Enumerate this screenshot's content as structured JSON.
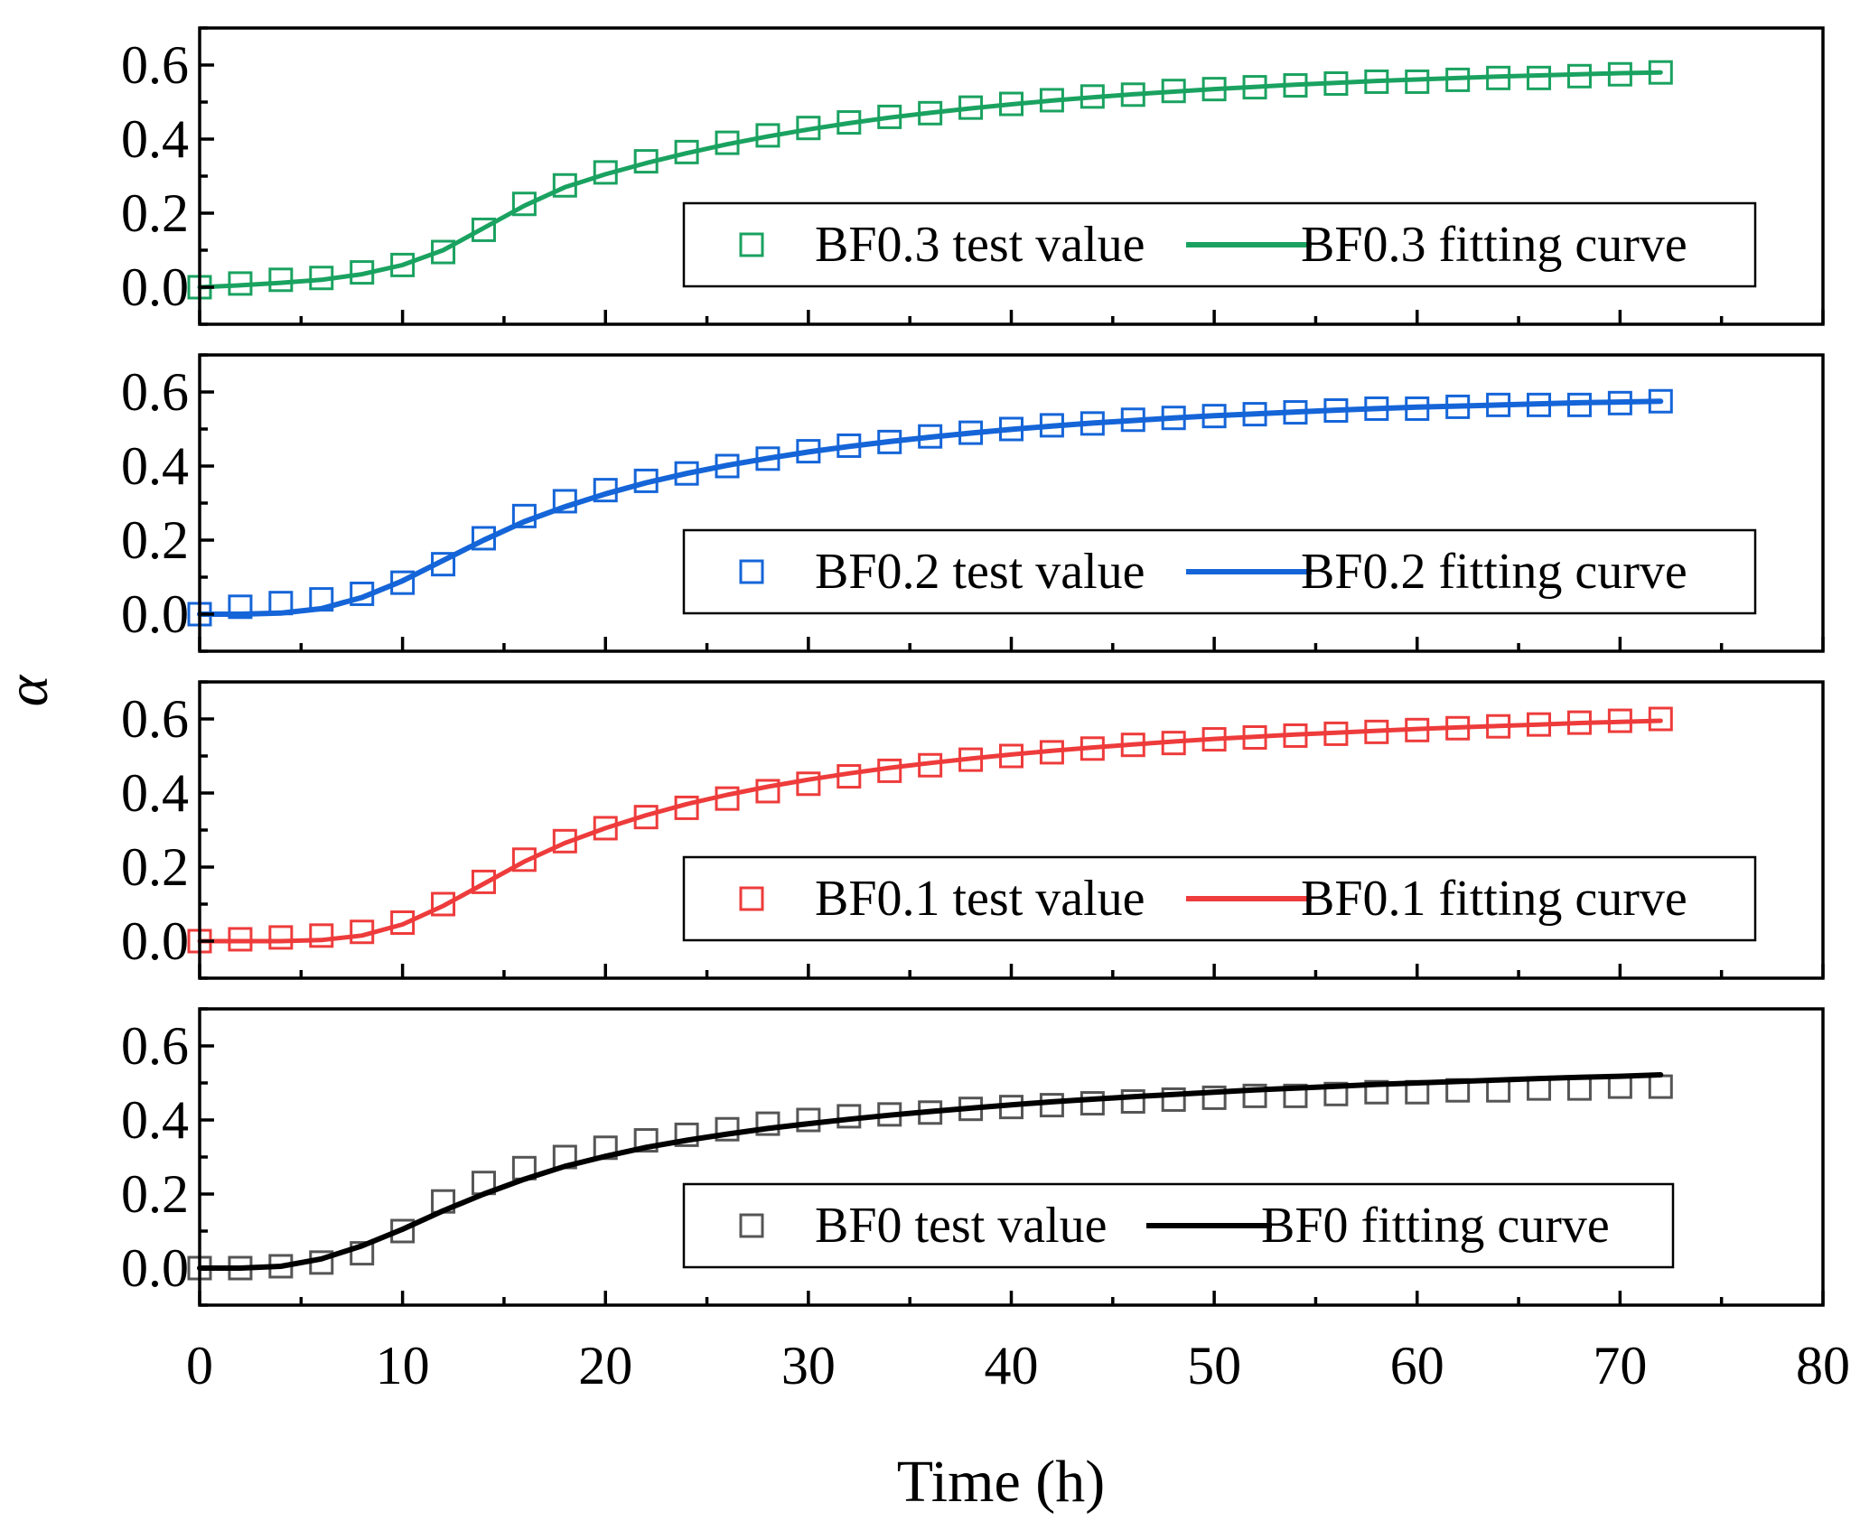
{
  "chart_data": {
    "type": "scatter",
    "x_label": "Time (h)",
    "y_label": "α",
    "xlim": [
      0,
      80
    ],
    "x_ticks": [
      0,
      10,
      20,
      30,
      40,
      50,
      60,
      70,
      80
    ],
    "x_tick_labels": [
      "0",
      "10",
      "20",
      "30",
      "40",
      "50",
      "60",
      "70",
      "80"
    ],
    "panels": [
      {
        "id": "bf03",
        "ylim": [
          -0.1,
          0.7
        ],
        "y_ticks": [
          0.0,
          0.2,
          0.4,
          0.6
        ],
        "y_tick_labels": [
          "0.0",
          "0.2",
          "0.4",
          "0.6"
        ],
        "color": "#1aa260",
        "test_label": "BF0.3 test value",
        "fit_label": "BF0.3 fitting curve",
        "test_x": [
          0,
          2,
          4,
          6,
          8,
          10,
          12,
          14,
          16,
          18,
          20,
          22,
          24,
          26,
          28,
          30,
          32,
          34,
          36,
          38,
          40,
          42,
          44,
          46,
          48,
          50,
          52,
          54,
          56,
          58,
          60,
          62,
          64,
          66,
          68,
          70,
          72
        ],
        "test_y": [
          0.0,
          0.01,
          0.02,
          0.025,
          0.04,
          0.06,
          0.095,
          0.155,
          0.225,
          0.275,
          0.31,
          0.34,
          0.365,
          0.39,
          0.41,
          0.43,
          0.445,
          0.46,
          0.47,
          0.485,
          0.495,
          0.505,
          0.515,
          0.52,
          0.53,
          0.535,
          0.54,
          0.545,
          0.55,
          0.555,
          0.555,
          0.56,
          0.565,
          0.565,
          0.57,
          0.575,
          0.58
        ],
        "fit_x": [
          0,
          2,
          4,
          6,
          8,
          10,
          12,
          14,
          16,
          18,
          20,
          22,
          24,
          26,
          28,
          30,
          32,
          34,
          36,
          38,
          40,
          42,
          44,
          46,
          48,
          50,
          52,
          54,
          56,
          58,
          60,
          62,
          64,
          66,
          68,
          70,
          72
        ],
        "fit_y": [
          0.0,
          0.005,
          0.012,
          0.02,
          0.035,
          0.06,
          0.1,
          0.16,
          0.22,
          0.27,
          0.305,
          0.335,
          0.362,
          0.386,
          0.407,
          0.426,
          0.443,
          0.458,
          0.471,
          0.483,
          0.494,
          0.504,
          0.513,
          0.521,
          0.528,
          0.535,
          0.541,
          0.547,
          0.552,
          0.557,
          0.561,
          0.565,
          0.569,
          0.572,
          0.575,
          0.578,
          0.58
        ]
      },
      {
        "id": "bf02",
        "ylim": [
          -0.1,
          0.7
        ],
        "y_ticks": [
          0.0,
          0.2,
          0.4,
          0.6
        ],
        "y_tick_labels": [
          "0.0",
          "0.2",
          "0.4",
          "0.6"
        ],
        "color": "#1565d8",
        "test_label": "BF0.2 test value",
        "fit_label": "BF0.2 fitting curve",
        "test_x": [
          0,
          2,
          4,
          6,
          8,
          10,
          12,
          14,
          16,
          18,
          20,
          22,
          24,
          26,
          28,
          30,
          32,
          34,
          36,
          38,
          40,
          42,
          44,
          46,
          48,
          50,
          52,
          54,
          56,
          58,
          60,
          62,
          64,
          66,
          68,
          70,
          72
        ],
        "test_y": [
          0.0,
          0.02,
          0.03,
          0.04,
          0.055,
          0.085,
          0.135,
          0.205,
          0.265,
          0.305,
          0.335,
          0.36,
          0.38,
          0.4,
          0.42,
          0.44,
          0.455,
          0.465,
          0.48,
          0.49,
          0.5,
          0.51,
          0.515,
          0.525,
          0.53,
          0.535,
          0.54,
          0.545,
          0.55,
          0.555,
          0.555,
          0.56,
          0.565,
          0.565,
          0.565,
          0.57,
          0.575
        ],
        "fit_x": [
          0,
          2,
          4,
          6,
          8,
          10,
          12,
          14,
          16,
          18,
          20,
          22,
          24,
          26,
          28,
          30,
          32,
          34,
          36,
          38,
          40,
          42,
          44,
          46,
          48,
          50,
          52,
          54,
          56,
          58,
          60,
          62,
          64,
          66,
          68,
          70,
          72
        ],
        "fit_y": [
          0.0,
          0.0,
          0.003,
          0.015,
          0.045,
          0.09,
          0.145,
          0.2,
          0.25,
          0.29,
          0.325,
          0.355,
          0.38,
          0.402,
          0.421,
          0.438,
          0.453,
          0.466,
          0.478,
          0.489,
          0.499,
          0.508,
          0.516,
          0.523,
          0.53,
          0.536,
          0.541,
          0.546,
          0.551,
          0.555,
          0.559,
          0.562,
          0.565,
          0.568,
          0.571,
          0.573,
          0.575
        ]
      },
      {
        "id": "bf01",
        "ylim": [
          -0.1,
          0.7
        ],
        "y_ticks": [
          0.0,
          0.2,
          0.4,
          0.6
        ],
        "y_tick_labels": [
          "0.0",
          "0.2",
          "0.4",
          "0.6"
        ],
        "color": "#ee3b3b",
        "test_label": "BF0.1 test value",
        "fit_label": "BF0.1 fitting curve",
        "test_x": [
          0,
          2,
          4,
          6,
          8,
          10,
          12,
          14,
          16,
          18,
          20,
          22,
          24,
          26,
          28,
          30,
          32,
          34,
          36,
          38,
          40,
          42,
          44,
          46,
          48,
          50,
          52,
          54,
          56,
          58,
          60,
          62,
          64,
          66,
          68,
          70,
          72
        ],
        "test_y": [
          0.0,
          0.005,
          0.01,
          0.015,
          0.025,
          0.05,
          0.1,
          0.16,
          0.22,
          0.27,
          0.305,
          0.335,
          0.36,
          0.385,
          0.405,
          0.425,
          0.445,
          0.46,
          0.475,
          0.49,
          0.5,
          0.51,
          0.52,
          0.53,
          0.535,
          0.545,
          0.55,
          0.555,
          0.56,
          0.565,
          0.57,
          0.575,
          0.58,
          0.585,
          0.59,
          0.595,
          0.6
        ],
        "fit_x": [
          0,
          2,
          4,
          6,
          8,
          10,
          12,
          14,
          16,
          18,
          20,
          22,
          24,
          26,
          28,
          30,
          32,
          34,
          36,
          38,
          40,
          42,
          44,
          46,
          48,
          50,
          52,
          54,
          56,
          58,
          60,
          62,
          64,
          66,
          68,
          70,
          72
        ],
        "fit_y": [
          0.0,
          0.0,
          0.0,
          0.003,
          0.015,
          0.045,
          0.095,
          0.155,
          0.215,
          0.265,
          0.305,
          0.34,
          0.37,
          0.395,
          0.417,
          0.436,
          0.453,
          0.468,
          0.481,
          0.493,
          0.504,
          0.514,
          0.523,
          0.531,
          0.539,
          0.546,
          0.552,
          0.558,
          0.563,
          0.568,
          0.573,
          0.577,
          0.581,
          0.585,
          0.589,
          0.592,
          0.595
        ]
      },
      {
        "id": "bf0",
        "ylim": [
          -0.1,
          0.7
        ],
        "y_ticks": [
          0.0,
          0.2,
          0.4,
          0.6
        ],
        "y_tick_labels": [
          "0.0",
          "0.2",
          "0.4",
          "0.6"
        ],
        "color": "#000000",
        "marker_color": "#555555",
        "test_label": "BF0 test value",
        "fit_label": "BF0 fitting curve",
        "test_x": [
          0,
          2,
          4,
          6,
          8,
          10,
          12,
          14,
          16,
          18,
          20,
          22,
          24,
          26,
          28,
          30,
          32,
          34,
          36,
          38,
          40,
          42,
          44,
          46,
          48,
          50,
          52,
          54,
          56,
          58,
          60,
          62,
          64,
          66,
          68,
          70,
          72
        ],
        "test_y": [
          0.0,
          0.0,
          0.005,
          0.015,
          0.04,
          0.1,
          0.18,
          0.23,
          0.27,
          0.3,
          0.325,
          0.345,
          0.36,
          0.375,
          0.39,
          0.4,
          0.41,
          0.415,
          0.42,
          0.43,
          0.435,
          0.44,
          0.445,
          0.45,
          0.455,
          0.46,
          0.465,
          0.465,
          0.47,
          0.475,
          0.475,
          0.48,
          0.48,
          0.485,
          0.485,
          0.49,
          0.49
        ],
        "fit_x": [
          0,
          2,
          4,
          6,
          8,
          10,
          12,
          14,
          16,
          18,
          20,
          22,
          24,
          26,
          28,
          30,
          32,
          34,
          36,
          38,
          40,
          42,
          44,
          46,
          48,
          50,
          52,
          54,
          56,
          58,
          60,
          62,
          64,
          66,
          68,
          70,
          72
        ],
        "fit_y": [
          0.0,
          0.0,
          0.005,
          0.025,
          0.06,
          0.105,
          0.155,
          0.2,
          0.24,
          0.275,
          0.302,
          0.326,
          0.345,
          0.362,
          0.377,
          0.39,
          0.402,
          0.413,
          0.423,
          0.432,
          0.441,
          0.449,
          0.456,
          0.463,
          0.469,
          0.475,
          0.481,
          0.486,
          0.491,
          0.496,
          0.5,
          0.504,
          0.508,
          0.512,
          0.515,
          0.518,
          0.522
        ]
      }
    ]
  }
}
